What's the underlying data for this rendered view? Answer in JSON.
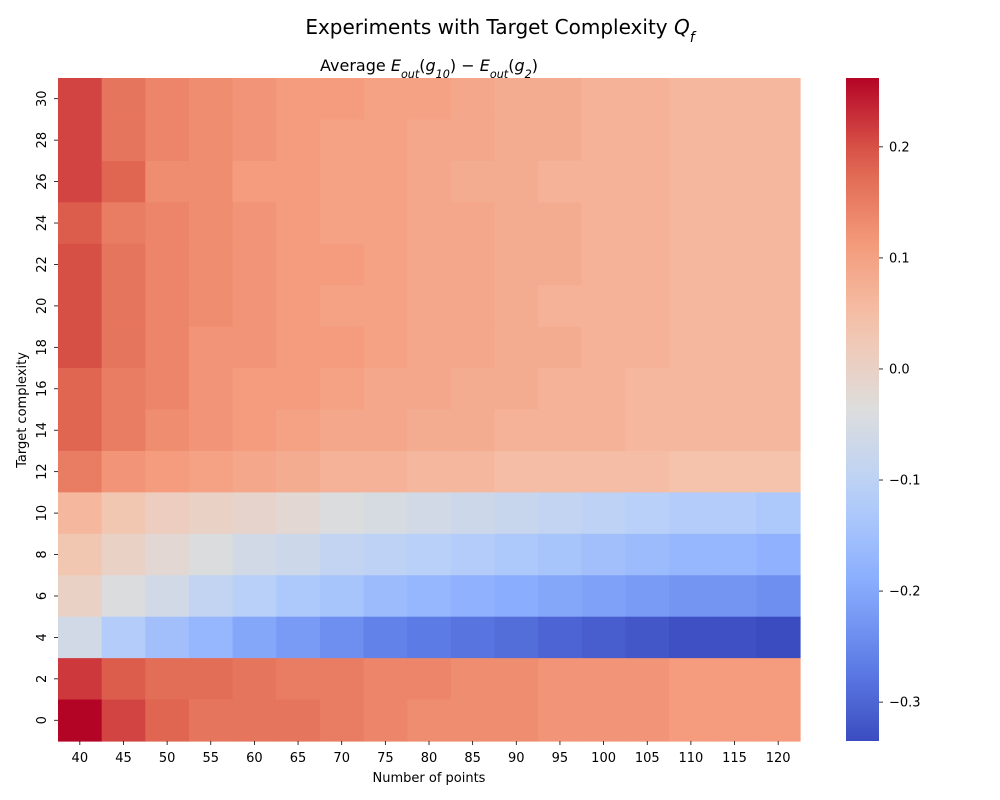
{
  "chart_data": {
    "type": "heatmap",
    "suptitle": "Experiments with Target Complexity Q_f",
    "title": "Average E_out(g_10) - E_out(g_2)",
    "xlabel": "Number of points",
    "ylabel": "Target complexity",
    "x": [
      "40",
      "45",
      "50",
      "55",
      "60",
      "65",
      "70",
      "75",
      "80",
      "85",
      "90",
      "95",
      "100",
      "105",
      "110",
      "115",
      "120"
    ],
    "y": [
      "30",
      "28",
      "26",
      "24",
      "22",
      "20",
      "18",
      "16",
      "14",
      "12",
      "10",
      "8",
      "6",
      "4",
      "2",
      "0"
    ],
    "colormap": "coolwarm",
    "vmin": -0.335,
    "vmax": 0.262,
    "colorbar_ticks": [
      0.2,
      0.1,
      0.0,
      -0.1,
      -0.2,
      -0.3
    ],
    "colorbar_tick_labels": [
      "0.2",
      "0.1",
      "0.0",
      "−0.1",
      "−0.2",
      "−0.3"
    ],
    "values": [
      [
        0.21,
        0.16,
        0.14,
        0.13,
        0.12,
        0.11,
        0.11,
        0.1,
        0.1,
        0.09,
        0.08,
        0.08,
        0.07,
        0.07,
        0.06,
        0.06,
        0.06
      ],
      [
        0.21,
        0.16,
        0.14,
        0.13,
        0.12,
        0.11,
        0.1,
        0.1,
        0.09,
        0.09,
        0.08,
        0.08,
        0.07,
        0.07,
        0.06,
        0.06,
        0.06
      ],
      [
        0.21,
        0.18,
        0.13,
        0.13,
        0.11,
        0.11,
        0.1,
        0.1,
        0.09,
        0.08,
        0.08,
        0.07,
        0.07,
        0.07,
        0.06,
        0.06,
        0.06
      ],
      [
        0.19,
        0.15,
        0.14,
        0.13,
        0.12,
        0.11,
        0.1,
        0.1,
        0.09,
        0.09,
        0.08,
        0.08,
        0.07,
        0.07,
        0.06,
        0.06,
        0.06
      ],
      [
        0.2,
        0.16,
        0.14,
        0.13,
        0.12,
        0.11,
        0.11,
        0.1,
        0.09,
        0.09,
        0.08,
        0.08,
        0.07,
        0.07,
        0.06,
        0.06,
        0.06
      ],
      [
        0.2,
        0.16,
        0.14,
        0.13,
        0.12,
        0.11,
        0.1,
        0.1,
        0.09,
        0.09,
        0.08,
        0.07,
        0.07,
        0.07,
        0.06,
        0.06,
        0.06
      ],
      [
        0.2,
        0.16,
        0.14,
        0.12,
        0.12,
        0.11,
        0.11,
        0.1,
        0.09,
        0.09,
        0.08,
        0.08,
        0.07,
        0.07,
        0.06,
        0.06,
        0.06
      ],
      [
        0.18,
        0.15,
        0.14,
        0.12,
        0.11,
        0.11,
        0.1,
        0.09,
        0.09,
        0.08,
        0.08,
        0.07,
        0.07,
        0.06,
        0.06,
        0.06,
        0.06
      ],
      [
        0.18,
        0.15,
        0.13,
        0.12,
        0.11,
        0.1,
        0.09,
        0.09,
        0.08,
        0.08,
        0.07,
        0.07,
        0.07,
        0.06,
        0.06,
        0.06,
        0.06
      ],
      [
        0.15,
        0.12,
        0.11,
        0.1,
        0.09,
        0.08,
        0.07,
        0.07,
        0.06,
        0.06,
        0.05,
        0.05,
        0.05,
        0.05,
        0.04,
        0.04,
        0.04
      ],
      [
        0.06,
        0.03,
        0.01,
        0.0,
        -0.01,
        -0.02,
        -0.04,
        -0.05,
        -0.06,
        -0.07,
        -0.08,
        -0.09,
        -0.1,
        -0.11,
        -0.12,
        -0.12,
        -0.13
      ],
      [
        0.03,
        0.0,
        -0.02,
        -0.04,
        -0.06,
        -0.07,
        -0.09,
        -0.1,
        -0.11,
        -0.12,
        -0.13,
        -0.14,
        -0.15,
        -0.16,
        -0.17,
        -0.17,
        -0.18
      ],
      [
        0.0,
        -0.04,
        -0.06,
        -0.09,
        -0.11,
        -0.13,
        -0.14,
        -0.16,
        -0.17,
        -0.18,
        -0.19,
        -0.2,
        -0.21,
        -0.22,
        -0.23,
        -0.23,
        -0.24
      ],
      [
        -0.06,
        -0.12,
        -0.15,
        -0.17,
        -0.2,
        -0.22,
        -0.24,
        -0.26,
        -0.27,
        -0.28,
        -0.29,
        -0.3,
        -0.31,
        -0.32,
        -0.33,
        -0.33,
        -0.335
      ],
      [
        0.22,
        0.19,
        0.17,
        0.17,
        0.16,
        0.15,
        0.15,
        0.14,
        0.14,
        0.13,
        0.13,
        0.12,
        0.12,
        0.12,
        0.11,
        0.11,
        0.11
      ],
      [
        0.262,
        0.21,
        0.18,
        0.16,
        0.16,
        0.16,
        0.15,
        0.14,
        0.13,
        0.13,
        0.13,
        0.12,
        0.12,
        0.12,
        0.11,
        0.11,
        0.11
      ]
    ]
  }
}
